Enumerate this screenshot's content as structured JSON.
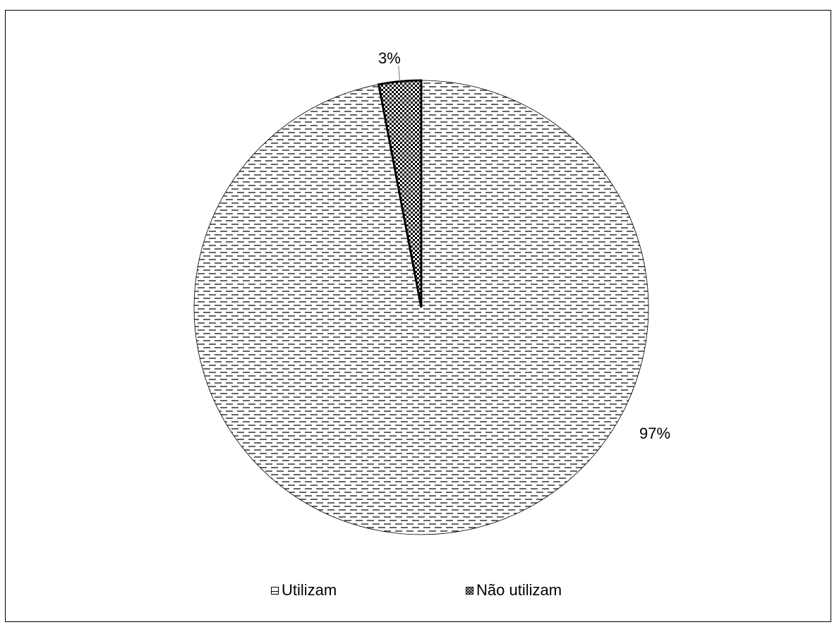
{
  "chart_data": {
    "type": "pie",
    "categories": [
      "Utilizam",
      "Não utilizam"
    ],
    "values": [
      97,
      3
    ],
    "labels": [
      "97%",
      "3%"
    ],
    "legend_position": "bottom"
  },
  "legend": {
    "items": [
      {
        "label": "Utilizam"
      },
      {
        "label": "Não utilizam"
      }
    ]
  }
}
